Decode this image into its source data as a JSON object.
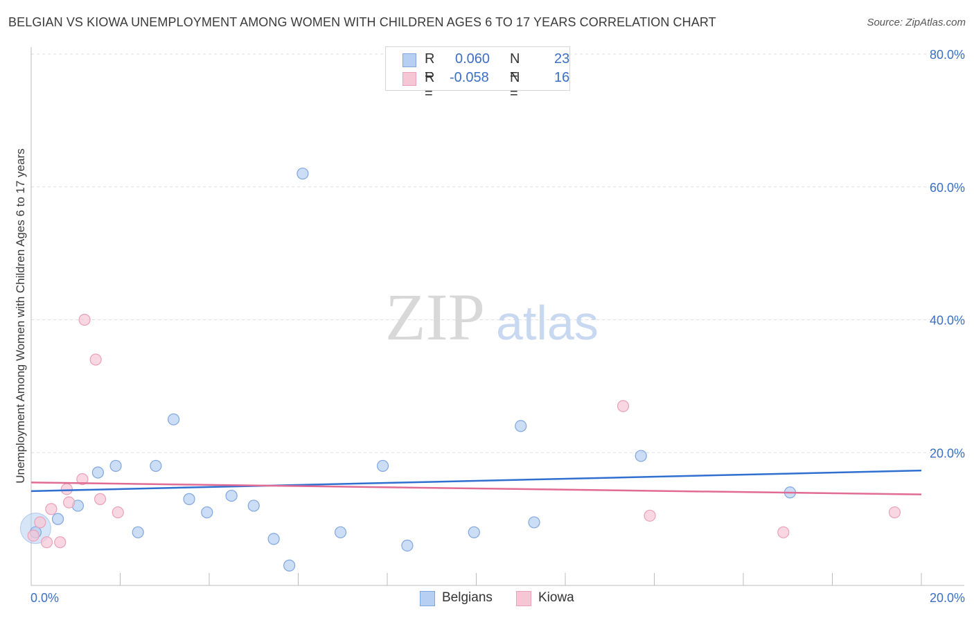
{
  "title": "BELGIAN VS KIOWA UNEMPLOYMENT AMONG WOMEN WITH CHILDREN AGES 6 TO 17 YEARS CORRELATION CHART",
  "source": "Source: ZipAtlas.com",
  "watermark": {
    "zip": "ZIP",
    "atlas": "atlas"
  },
  "colors": {
    "belgians_fill": "#b7cff2",
    "belgians_stroke": "#7fa6e0",
    "belgians_line": "#2e6fd0",
    "kiowa_fill": "#f7c6d5",
    "kiowa_stroke": "#eaa0b8",
    "kiowa_line": "#e06b94",
    "axis_text": "#3b6fc4",
    "grid": "#dddddd"
  },
  "legend": {
    "r_label": "R =",
    "n_label": "N =",
    "belgians": {
      "r": "0.060",
      "n": "23"
    },
    "kiowa": {
      "r": "-0.058",
      "n": "16"
    }
  },
  "chart_data": {
    "type": "scatter",
    "title": "BELGIAN VS KIOWA UNEMPLOYMENT AMONG WOMEN WITH CHILDREN AGES 6 TO 17 YEARS CORRELATION CHART",
    "xlabel": "",
    "ylabel": "Unemployment Among Women with Children Ages 6 to 17 years",
    "xlim": [
      0,
      20
    ],
    "ylim": [
      0,
      80
    ],
    "x_tick_labels": [
      "0.0%",
      "20.0%"
    ],
    "y_ticks": [
      20,
      40,
      60,
      80
    ],
    "y_tick_labels": [
      "20.0%",
      "40.0%",
      "60.0%",
      "80.0%"
    ],
    "grid": true,
    "series": [
      {
        "name": "Belgians",
        "points": [
          [
            0.1,
            8.0
          ],
          [
            0.6,
            10.0
          ],
          [
            1.05,
            12.0
          ],
          [
            1.5,
            17.0
          ],
          [
            1.9,
            18.0
          ],
          [
            2.4,
            8.0
          ],
          [
            2.8,
            18.0
          ],
          [
            3.2,
            25.0
          ],
          [
            3.55,
            13.0
          ],
          [
            3.95,
            11.0
          ],
          [
            4.5,
            13.5
          ],
          [
            5.0,
            12.0
          ],
          [
            5.45,
            7.0
          ],
          [
            5.8,
            3.0
          ],
          [
            6.1,
            62.0
          ],
          [
            6.95,
            8.0
          ],
          [
            7.9,
            18.0
          ],
          [
            8.45,
            6.0
          ],
          [
            9.95,
            8.0
          ],
          [
            11.0,
            24.0
          ],
          [
            11.3,
            9.5
          ],
          [
            13.7,
            19.5
          ],
          [
            17.05,
            14.0
          ]
        ],
        "trend": [
          [
            0,
            14.2
          ],
          [
            20,
            17.3
          ]
        ],
        "r": 0.06,
        "n": 23
      },
      {
        "name": "Kiowa",
        "points": [
          [
            0.05,
            7.5
          ],
          [
            0.2,
            9.5
          ],
          [
            0.35,
            6.5
          ],
          [
            0.45,
            11.5
          ],
          [
            0.65,
            6.5
          ],
          [
            0.8,
            14.5
          ],
          [
            0.85,
            12.5
          ],
          [
            1.15,
            16.0
          ],
          [
            1.2,
            40.0
          ],
          [
            1.45,
            34.0
          ],
          [
            1.55,
            13.0
          ],
          [
            1.95,
            11.0
          ],
          [
            13.3,
            27.0
          ],
          [
            13.9,
            10.5
          ],
          [
            16.9,
            8.0
          ],
          [
            19.4,
            11.0
          ]
        ],
        "trend": [
          [
            0,
            15.5
          ],
          [
            20,
            13.7
          ]
        ],
        "r": -0.058,
        "n": 16
      }
    ]
  },
  "bottom_legend": [
    {
      "key": "belgians",
      "label": "Belgians"
    },
    {
      "key": "kiowa",
      "label": "Kiowa"
    }
  ]
}
